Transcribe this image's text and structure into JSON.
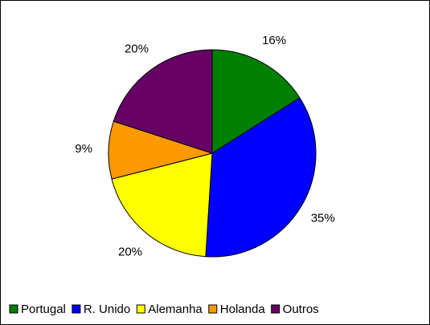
{
  "chart_data": {
    "type": "pie",
    "categories": [
      "Portugal",
      "R. Unido",
      "Alemanha",
      "Holanda",
      "Outros"
    ],
    "values": [
      16,
      35,
      20,
      9,
      20
    ],
    "value_labels": [
      "16%",
      "35%",
      "20%",
      "9%",
      "20%"
    ],
    "colors": [
      "#008000",
      "#0000ff",
      "#ffff00",
      "#ff9900",
      "#660066"
    ],
    "legend": "bottom"
  }
}
